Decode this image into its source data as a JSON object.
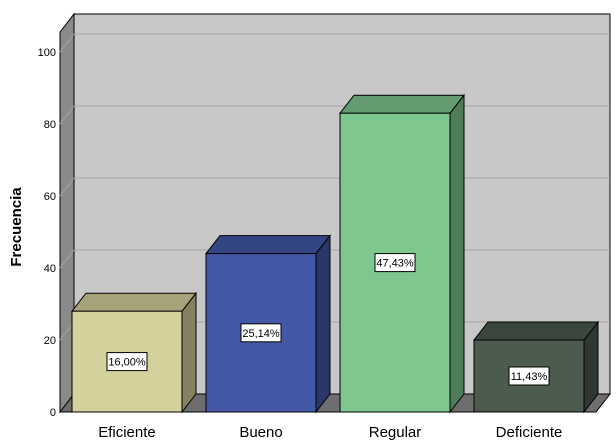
{
  "chart_data": {
    "type": "bar",
    "style": "3d",
    "title": "",
    "xlabel": "",
    "ylabel": "Frecuencia",
    "ylim": [
      0,
      100
    ],
    "yticks": [
      "0",
      "20",
      "40",
      "60",
      "80",
      "100"
    ],
    "grid": true,
    "categories": [
      "Eficiente",
      "Bueno",
      "Regular",
      "Deficiente"
    ],
    "values": [
      28,
      44,
      83,
      20
    ],
    "data_labels": [
      "16,00%",
      "25,14%",
      "47,43%",
      "11,43%"
    ],
    "colors": [
      "#d5d19c",
      "#4359a8",
      "#7ec890",
      "#4b5b4e"
    ],
    "wall_color": "#c8c8c8",
    "floor_color": "#6e6e6e"
  }
}
